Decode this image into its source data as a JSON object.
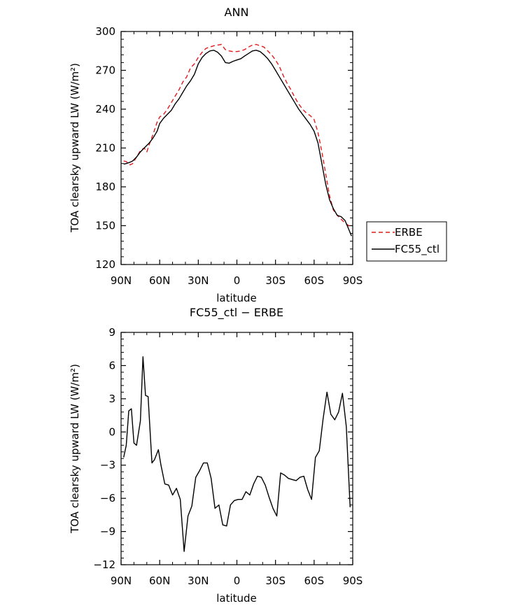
{
  "chart_data": [
    {
      "type": "line",
      "title": "ANN",
      "xlabel": "latitude",
      "ylabel": "TOA clearsky upward LW (W/m²)",
      "x_ticks": [
        90,
        60,
        30,
        0,
        -30,
        -60,
        -90
      ],
      "x_tick_labels": [
        "90N",
        "60N",
        "30N",
        "0",
        "30S",
        "60S",
        "90S"
      ],
      "xlim": [
        90,
        -90
      ],
      "ylim": [
        120,
        300
      ],
      "y_ticks": [
        120,
        150,
        180,
        210,
        240,
        270,
        300
      ],
      "y_tick_labels": [
        "120",
        "150",
        "180",
        "210",
        "240",
        "270",
        "300"
      ],
      "grid": false,
      "legend_position": "right",
      "series": [
        {
          "name": "ERBE",
          "color": "#e31a1c",
          "dash": "dashed",
          "x": [
            88,
            86,
            83,
            81,
            78,
            75,
            72,
            70,
            68,
            65,
            62,
            60,
            57,
            54,
            51,
            48,
            45,
            42,
            39,
            36,
            33,
            30,
            27,
            24,
            21,
            18,
            15,
            12,
            9,
            6,
            3,
            0,
            -3,
            -6,
            -9,
            -12,
            -15,
            -18,
            -21,
            -24,
            -27,
            -30,
            -33,
            -36,
            -39,
            -42,
            -45,
            -48,
            -51,
            -54,
            -57,
            -60,
            -63,
            -66,
            -69,
            -72,
            -75,
            -78,
            -81,
            -84,
            -87,
            -89
          ],
          "y": [
            200,
            199.5,
            197,
            198,
            203,
            208,
            210,
            207,
            213,
            221,
            230,
            234,
            236,
            240,
            245,
            250,
            255,
            261,
            265,
            272,
            275,
            280,
            284,
            287,
            288,
            289,
            289.5,
            290,
            286,
            285,
            284.5,
            284.5,
            285,
            286,
            288,
            289.5,
            290,
            289,
            288,
            285,
            282,
            278,
            273,
            266,
            260,
            255,
            249,
            244,
            240,
            237,
            235,
            232,
            222,
            207,
            190,
            173,
            162,
            158,
            155,
            152,
            150,
            148
          ]
        },
        {
          "name": "FC55_ctl",
          "color": "#000000",
          "dash": "solid",
          "x": [
            88,
            86,
            83,
            81,
            78,
            75,
            72,
            70,
            68,
            65,
            62,
            60,
            57,
            54,
            51,
            48,
            45,
            42,
            39,
            36,
            33,
            30,
            27,
            24,
            21,
            18,
            15,
            12,
            9,
            6,
            3,
            0,
            -3,
            -6,
            -9,
            -12,
            -15,
            -18,
            -21,
            -24,
            -27,
            -30,
            -33,
            -36,
            -39,
            -42,
            -45,
            -48,
            -51,
            -54,
            -57,
            -60,
            -63,
            -66,
            -69,
            -72,
            -75,
            -78,
            -81,
            -84,
            -87,
            -89
          ],
          "y": [
            197.5,
            198,
            199,
            200,
            203,
            207,
            210,
            212,
            214,
            218,
            223,
            229,
            233,
            236,
            239,
            244,
            248,
            253,
            258,
            262,
            267,
            275,
            280,
            283,
            285,
            285.5,
            284,
            281,
            276,
            275.5,
            277,
            278,
            279,
            281,
            283,
            285,
            285.5,
            284.5,
            282,
            279,
            275,
            270,
            265,
            260,
            255,
            250,
            245,
            240,
            236,
            232,
            228,
            223,
            214,
            198,
            182,
            170,
            163,
            158,
            157,
            154,
            147,
            142
          ]
        }
      ]
    },
    {
      "type": "line",
      "title": "FC55_ctl − ERBE",
      "xlabel": "latitude",
      "ylabel": "TOA clearsky upward LW (W/m²)",
      "x_ticks": [
        90,
        60,
        30,
        0,
        -30,
        -60,
        -90
      ],
      "x_tick_labels": [
        "90N",
        "60N",
        "30N",
        "0",
        "30S",
        "60S",
        "90S"
      ],
      "xlim": [
        90,
        -90
      ],
      "ylim": [
        -12,
        9
      ],
      "y_ticks": [
        -12,
        -9,
        -6,
        -3,
        0,
        3,
        6,
        9
      ],
      "y_tick_labels": [
        "−12",
        "−9",
        "−6",
        "−3",
        "0",
        "3",
        "6",
        "9"
      ],
      "grid": false,
      "series": [
        {
          "color": "#000000",
          "dash": "solid",
          "x": [
            88,
            86,
            84,
            82,
            80,
            78,
            75,
            73,
            71,
            69,
            66,
            64,
            61,
            59,
            56,
            53,
            50,
            47,
            44,
            41,
            38,
            35,
            32,
            29,
            26,
            23,
            20,
            17,
            14,
            11,
            8,
            5,
            2,
            -1,
            -4,
            -7,
            -10,
            -13,
            -16,
            -19,
            -22,
            -25,
            -28,
            -31,
            -34,
            -37,
            -40,
            -43,
            -46,
            -49,
            -52,
            -55,
            -58,
            -61,
            -64,
            -67,
            -70,
            -73,
            -76,
            -79,
            -82,
            -85,
            -88
          ],
          "y": [
            -2.3,
            -1.2,
            1.9,
            2.1,
            -1,
            -1.2,
            1,
            6.8,
            3.3,
            3.2,
            -2.8,
            -2.5,
            -1.6,
            -3.0,
            -4.7,
            -4.8,
            -5.7,
            -5.1,
            -6.1,
            -10.8,
            -7.6,
            -6.7,
            -4.1,
            -3.5,
            -2.8,
            -2.8,
            -4.2,
            -6.9,
            -6.6,
            -8.4,
            -8.5,
            -6.6,
            -6.2,
            -6.1,
            -6.1,
            -5.4,
            -5.7,
            -4.7,
            -4.0,
            -4.1,
            -4.8,
            -5.9,
            -6.9,
            -7.6,
            -3.7,
            -3.9,
            -4.2,
            -4.3,
            -4.4,
            -4.1,
            -4.0,
            -5.2,
            -6.1,
            -2.3,
            -1.7,
            1.2,
            3.6,
            1.6,
            1.1,
            1.8,
            3.5,
            0.5,
            -6.8
          ]
        }
      ]
    }
  ]
}
